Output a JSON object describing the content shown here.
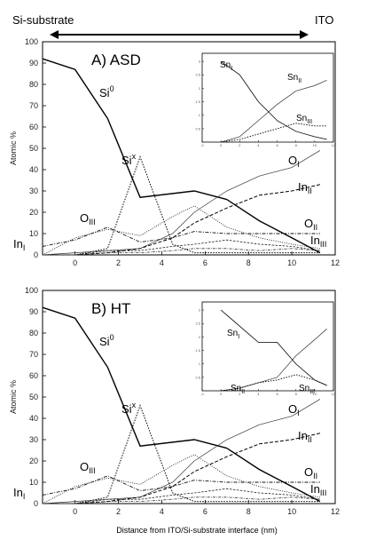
{
  "header": {
    "left_label": "Si-substrate",
    "right_label": "ITO"
  },
  "axes": {
    "ylabel": "Atomic %",
    "xlabel": "Distance from ITO/Si-substrate interface (nm)"
  },
  "chart_data": [
    {
      "type": "line",
      "title": "A) ASD",
      "xlim": [
        -1.5,
        12
      ],
      "ylim": [
        0,
        100
      ],
      "xticks": [
        0,
        2,
        4,
        6,
        8,
        10,
        12
      ],
      "yticks": [
        0,
        10,
        20,
        30,
        40,
        50,
        60,
        70,
        80,
        90,
        100
      ],
      "series": [
        {
          "name": "Si",
          "sup": "0",
          "style": "solid-thick",
          "x": [
            -1.5,
            0,
            1.5,
            3,
            5.5,
            7,
            8.5,
            10,
            11.3
          ],
          "y": [
            92,
            87,
            64,
            27,
            30,
            26,
            16,
            8,
            1
          ]
        },
        {
          "name": "Si",
          "sup": "x",
          "style": "dotted",
          "x": [
            -1.5,
            0,
            1.5,
            3,
            4.5,
            5.5,
            7,
            8.5,
            10,
            11.3
          ],
          "y": [
            0,
            0,
            3,
            46,
            5,
            1,
            1,
            1,
            1,
            1
          ]
        },
        {
          "name": "O",
          "sub": "I",
          "style": "thin",
          "x": [
            -1.5,
            0,
            1.5,
            3,
            4.5,
            5.5,
            7,
            8.5,
            10,
            11.3
          ],
          "y": [
            0,
            1,
            2,
            3,
            10,
            20,
            30,
            37,
            41,
            49
          ]
        },
        {
          "name": "In",
          "sub": "II",
          "style": "dashed",
          "x": [
            -1.5,
            0,
            1.5,
            3,
            4.5,
            5.5,
            7,
            8.5,
            10,
            11.3
          ],
          "y": [
            0,
            0,
            1,
            3,
            8,
            15,
            22,
            28,
            30,
            33
          ]
        },
        {
          "name": "O",
          "sub": "III",
          "style": "dotted-fine",
          "x": [
            -1.5,
            0,
            1.5,
            3,
            4.5,
            5.5,
            7,
            8.5,
            10,
            11.3
          ],
          "y": [
            0,
            8,
            12,
            9,
            18,
            23,
            13,
            8,
            5,
            3
          ]
        },
        {
          "name": "O",
          "sub": "II",
          "style": "dashdot",
          "x": [
            -1.5,
            0,
            1.5,
            3,
            4.5,
            5.5,
            7,
            8.5,
            10,
            11.3
          ],
          "y": [
            4,
            7,
            13,
            6,
            8,
            11,
            10,
            10,
            10,
            10
          ]
        },
        {
          "name": "In",
          "sub": "I",
          "style": "dash-fine",
          "x": [
            -1.5,
            0,
            1.5,
            3,
            4.5,
            5.5,
            7,
            8.5,
            10,
            11.3
          ],
          "y": [
            0,
            0,
            2,
            2,
            4,
            5,
            7,
            5,
            4,
            2
          ]
        },
        {
          "name": "In",
          "sub": "III",
          "style": "dashdot-fine",
          "x": [
            -1.5,
            0,
            1.5,
            3,
            4.5,
            5.5,
            7,
            8.5,
            10,
            11.3
          ],
          "y": [
            0,
            0,
            1,
            1,
            2,
            3,
            3,
            2,
            3,
            2
          ]
        }
      ],
      "inset": {
        "xlim": [
          -2,
          12
        ],
        "ylim": [
          0,
          3.3
        ],
        "xticks": [
          -2,
          0,
          2,
          4,
          6,
          8,
          10,
          12
        ],
        "yticks": [
          0.5,
          1,
          1.5,
          2,
          2.5,
          3
        ],
        "series": [
          {
            "name": "Sn",
            "sub": "I",
            "style": "solid",
            "x": [
              0,
              2,
              4,
              6,
              8,
              10,
              11.3
            ],
            "y": [
              3.0,
              2.5,
              1.5,
              0.8,
              0.4,
              0.2,
              0.1
            ]
          },
          {
            "name": "Sn",
            "sub": "II",
            "style": "thin",
            "x": [
              0,
              2,
              4,
              6,
              8,
              10,
              11.3
            ],
            "y": [
              0,
              0.2,
              0.8,
              1.4,
              1.9,
              2.1,
              2.3
            ]
          },
          {
            "name": "Sn",
            "sub": "III",
            "style": "dotted",
            "x": [
              0,
              2,
              4,
              6,
              8,
              10,
              11.3
            ],
            "y": [
              0,
              0.1,
              0.3,
              0.5,
              0.7,
              0.6,
              0.6
            ]
          }
        ]
      }
    },
    {
      "type": "line",
      "title": "B) HT",
      "xlim": [
        -1.5,
        12
      ],
      "ylim": [
        0,
        100
      ],
      "xticks": [
        0,
        2,
        4,
        6,
        8,
        10,
        12
      ],
      "yticks": [
        0,
        10,
        20,
        30,
        40,
        50,
        60,
        70,
        80,
        90,
        100
      ],
      "series": [
        {
          "name": "Si",
          "sup": "0",
          "style": "solid-thick",
          "x": [
            -1.5,
            0,
            1.5,
            3,
            5.5,
            7,
            8.5,
            10,
            11.3
          ],
          "y": [
            92,
            87,
            64,
            27,
            30,
            26,
            16,
            8,
            1
          ]
        },
        {
          "name": "Si",
          "sup": "x",
          "style": "dotted",
          "x": [
            -1.5,
            0,
            1.5,
            3,
            4.5,
            5.5,
            7,
            8.5,
            10,
            11.3
          ],
          "y": [
            0,
            0,
            3,
            46,
            5,
            1,
            1,
            1,
            1,
            1
          ]
        },
        {
          "name": "O",
          "sub": "I",
          "style": "thin",
          "x": [
            -1.5,
            0,
            1.5,
            3,
            4.5,
            5.5,
            7,
            8.5,
            10,
            11.3
          ],
          "y": [
            0,
            1,
            2,
            3,
            10,
            20,
            30,
            37,
            41,
            49
          ]
        },
        {
          "name": "In",
          "sub": "II",
          "style": "dashed",
          "x": [
            -1.5,
            0,
            1.5,
            3,
            4.5,
            5.5,
            7,
            8.5,
            10,
            11.3
          ],
          "y": [
            0,
            0,
            1,
            3,
            8,
            15,
            22,
            28,
            30,
            33
          ]
        },
        {
          "name": "O",
          "sub": "III",
          "style": "dotted-fine",
          "x": [
            -1.5,
            0,
            1.5,
            3,
            4.5,
            5.5,
            7,
            8.5,
            10,
            11.3
          ],
          "y": [
            0,
            8,
            12,
            9,
            18,
            23,
            13,
            8,
            5,
            3
          ]
        },
        {
          "name": "O",
          "sub": "II",
          "style": "dashdot",
          "x": [
            -1.5,
            0,
            1.5,
            3,
            4.5,
            5.5,
            7,
            8.5,
            10,
            11.3
          ],
          "y": [
            4,
            7,
            13,
            6,
            8,
            11,
            10,
            10,
            10,
            10
          ]
        },
        {
          "name": "In",
          "sub": "I",
          "style": "dash-fine",
          "x": [
            -1.5,
            0,
            1.5,
            3,
            4.5,
            5.5,
            7,
            8.5,
            10,
            11.3
          ],
          "y": [
            0,
            0,
            2,
            2,
            4,
            5,
            7,
            5,
            4,
            2
          ]
        },
        {
          "name": "In",
          "sub": "III",
          "style": "dashdot-fine",
          "x": [
            -1.5,
            0,
            1.5,
            3,
            4.5,
            5.5,
            7,
            8.5,
            10,
            11.3
          ],
          "y": [
            0,
            0,
            1,
            1,
            2,
            3,
            3,
            2,
            3,
            2
          ]
        }
      ],
      "inset": {
        "xlim": [
          -2,
          12
        ],
        "ylim": [
          0,
          3.3
        ],
        "xticks": [
          -2,
          0,
          2,
          4,
          6,
          8,
          10,
          12
        ],
        "yticks": [
          0.5,
          1,
          1.5,
          2,
          2.5,
          3
        ],
        "series": [
          {
            "name": "Sn",
            "sub": "I",
            "style": "solid",
            "x": [
              0,
              2,
              4,
              6,
              8,
              10,
              11.3
            ],
            "y": [
              3.0,
              2.4,
              1.8,
              1.8,
              1.0,
              0.4,
              0.2
            ]
          },
          {
            "name": "Sn",
            "sub": "II",
            "style": "thin",
            "x": [
              0,
              2,
              4,
              6,
              8,
              10,
              11.3
            ],
            "y": [
              0,
              0.1,
              0.3,
              0.5,
              1.3,
              1.9,
              2.3
            ]
          },
          {
            "name": "Sn",
            "sub": "III",
            "style": "dotted",
            "x": [
              0,
              2,
              4,
              6,
              8,
              10,
              11.3
            ],
            "y": [
              0,
              0.1,
              0.3,
              0.4,
              0.6,
              0.4,
              0.2
            ]
          }
        ]
      }
    }
  ]
}
